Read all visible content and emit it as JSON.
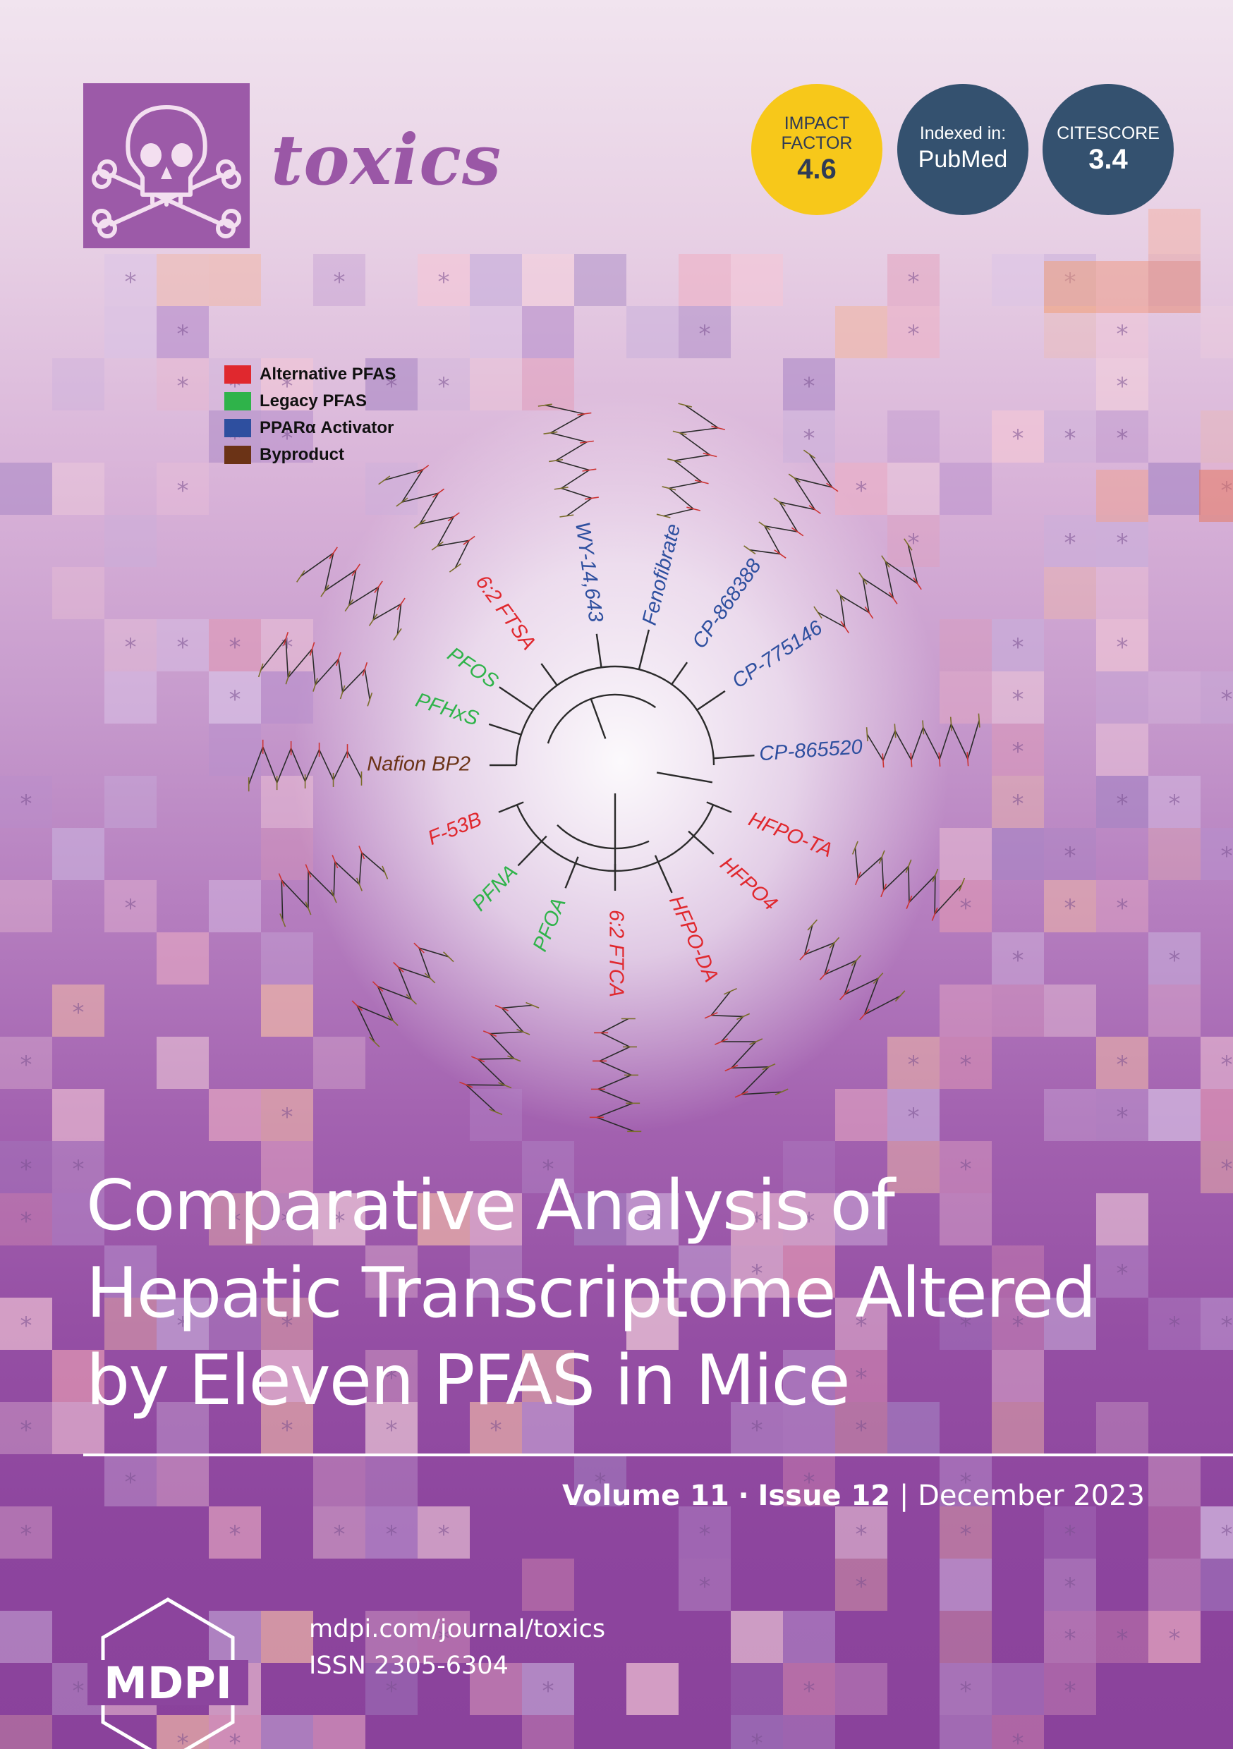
{
  "journal": {
    "name": "toxics"
  },
  "badges": {
    "impact_factor": {
      "line1": "IMPACT",
      "line2": "FACTOR",
      "value": "4.6",
      "color": "#f7c81a"
    },
    "indexed": {
      "label": "Indexed in:",
      "value": "PubMed",
      "color": "#34516f"
    },
    "citescore": {
      "label": "CITESCORE",
      "value": "3.4",
      "color": "#34516f"
    }
  },
  "legend": [
    {
      "label": "Alternative PFAS",
      "color": "#e0282e"
    },
    {
      "label": "Legacy PFAS",
      "color": "#2fb34a"
    },
    {
      "label": "PPARα Activator",
      "color": "#2e4f9f"
    },
    {
      "label": "Byproduct",
      "color": "#6b3316"
    }
  ],
  "compounds": [
    {
      "label": "Nafion BP2",
      "class": "Byproduct",
      "color": "#6b3316"
    },
    {
      "label": "PFHxS",
      "class": "Legacy PFAS",
      "color": "#2fb34a"
    },
    {
      "label": "PFOS",
      "class": "Legacy PFAS",
      "color": "#2fb34a"
    },
    {
      "label": "6:2 FTSA",
      "class": "Alternative PFAS",
      "color": "#e0282e"
    },
    {
      "label": "WY-14,643",
      "class": "PPARα Activator",
      "color": "#2e4f9f"
    },
    {
      "label": "Fenofibrate",
      "class": "PPARα Activator",
      "color": "#2e4f9f"
    },
    {
      "label": "CP-868388",
      "class": "PPARα Activator",
      "color": "#2e4f9f"
    },
    {
      "label": "CP-775146",
      "class": "PPARα Activator",
      "color": "#2e4f9f"
    },
    {
      "label": "CP-865520",
      "class": "PPARα Activator",
      "color": "#2e4f9f"
    },
    {
      "label": "HFPO-TA",
      "class": "Alternative PFAS",
      "color": "#e0282e"
    },
    {
      "label": "HFPO4",
      "class": "Alternative PFAS",
      "color": "#e0282e"
    },
    {
      "label": "HFPO-DA",
      "class": "Alternative PFAS",
      "color": "#e0282e"
    },
    {
      "label": "6:2 FTCA",
      "class": "Alternative PFAS",
      "color": "#e0282e"
    },
    {
      "label": "PFOA",
      "class": "Legacy PFAS",
      "color": "#2fb34a"
    },
    {
      "label": "PFNA",
      "class": "Legacy PFAS",
      "color": "#2fb34a"
    },
    {
      "label": "F-53B",
      "class": "Alternative PFAS",
      "color": "#e0282e"
    }
  ],
  "article": {
    "title_lines": [
      "Comparative Analysis of",
      "Hepatic Transcriptome Altered",
      "by Eleven PFAS in Mice"
    ]
  },
  "issue": {
    "volume": "Volume 11",
    "sep": "·",
    "issue": "Issue 12",
    "bar": "|",
    "date": "December 2023"
  },
  "publisher": {
    "name": "MDPI",
    "url": "mdpi.com/journal/toxics",
    "issn": "ISSN 2305-6304"
  }
}
